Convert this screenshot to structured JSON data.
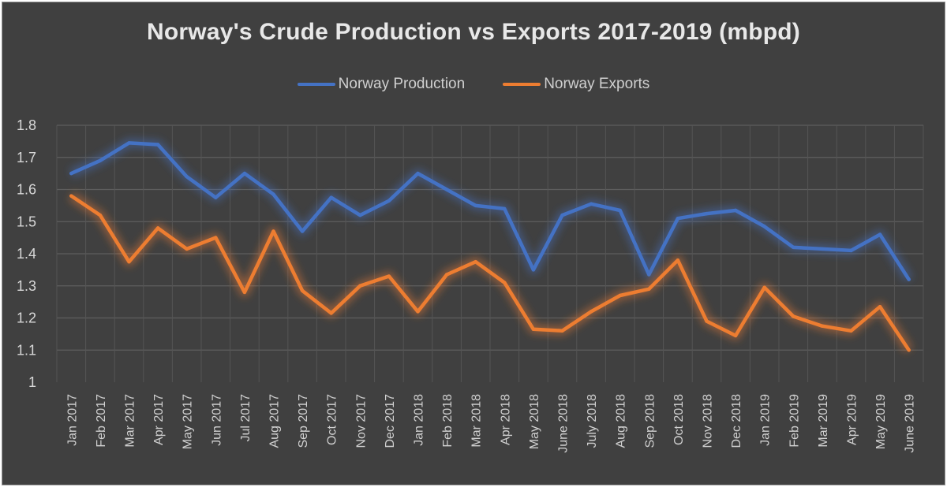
{
  "chart_data": {
    "type": "line",
    "title": "Norway's Crude Production vs Exports 2017-2019 (mbpd)",
    "xlabel": "",
    "ylabel": "",
    "ylim": [
      1,
      1.8
    ],
    "yticks": [
      "1",
      "1.1",
      "1.2",
      "1.3",
      "1.4",
      "1.5",
      "1.6",
      "1.7",
      "1.8"
    ],
    "grid": true,
    "legend_position": "top-center",
    "categories": [
      "Jan 2017",
      "Feb 2017",
      "Mar 2017",
      "Apr 2017",
      "May 2017",
      "Jun 2017",
      "Jul 2017",
      "Aug 2017",
      "Sep 2017",
      "Oct 2017",
      "Nov 2017",
      "Dec 2017",
      "Jan 2018",
      "Feb 2018",
      "Mar 2018",
      "Apr 2018",
      "May 2018",
      "June 2018",
      "July 2018",
      "Aug 2018",
      "Sep 2018",
      "Oct 2018",
      "Nov 2018",
      "Dec 2018",
      "Jan 2019",
      "Feb 2019",
      "Mar 2019",
      "Apr 2019",
      "May 2019",
      "June 2019"
    ],
    "series": [
      {
        "name": "Norway Production",
        "color": "#4472c4",
        "values": [
          1.65,
          1.69,
          1.745,
          1.74,
          1.64,
          1.575,
          1.65,
          1.585,
          1.47,
          1.575,
          1.52,
          1.565,
          1.65,
          1.6,
          1.55,
          1.54,
          1.35,
          1.52,
          1.555,
          1.535,
          1.335,
          1.51,
          1.525,
          1.535,
          1.485,
          1.42,
          1.415,
          1.41,
          1.46,
          1.32
        ]
      },
      {
        "name": "Norway Exports",
        "color": "#ed7d31",
        "values": [
          1.58,
          1.52,
          1.375,
          1.48,
          1.415,
          1.45,
          1.28,
          1.47,
          1.285,
          1.215,
          1.3,
          1.33,
          1.22,
          1.335,
          1.375,
          1.31,
          1.165,
          1.16,
          1.22,
          1.27,
          1.29,
          1.38,
          1.19,
          1.145,
          1.295,
          1.205,
          1.175,
          1.16,
          1.235,
          1.1
        ]
      }
    ]
  }
}
